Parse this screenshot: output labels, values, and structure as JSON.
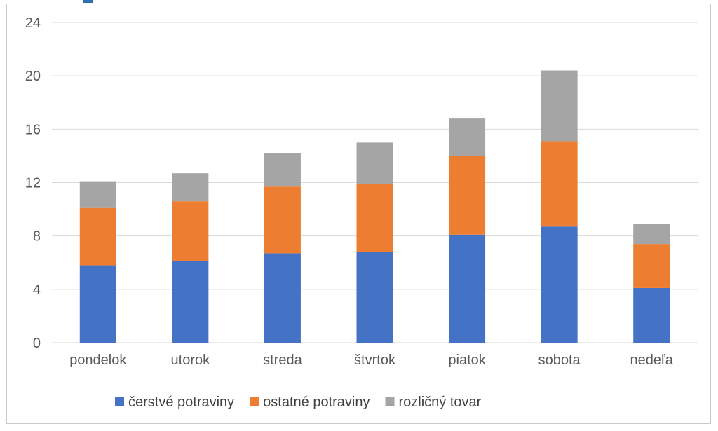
{
  "chart_data": {
    "type": "bar",
    "stacked": true,
    "title": "",
    "xlabel": "",
    "ylabel": "",
    "ylim": [
      0,
      24
    ],
    "yticks": [
      0,
      4,
      8,
      12,
      16,
      20,
      24
    ],
    "grid": true,
    "legend_position": "bottom",
    "categories": [
      "pondelok",
      "utorok",
      "streda",
      "štvrtok",
      "piatok",
      "sobota",
      "nedeľa"
    ],
    "series": [
      {
        "name": "čerstvé potraviny",
        "color": "#4472c4",
        "values": [
          5.8,
          6.1,
          6.7,
          6.8,
          8.1,
          8.7,
          4.1
        ]
      },
      {
        "name": "ostatné potraviny",
        "color": "#ed7d31",
        "values": [
          4.3,
          4.5,
          5.0,
          5.1,
          5.9,
          6.4,
          3.3
        ]
      },
      {
        "name": "rozličný tovar",
        "color": "#a5a5a5",
        "values": [
          2.0,
          2.1,
          2.5,
          3.1,
          2.8,
          5.3,
          1.5
        ]
      }
    ]
  }
}
